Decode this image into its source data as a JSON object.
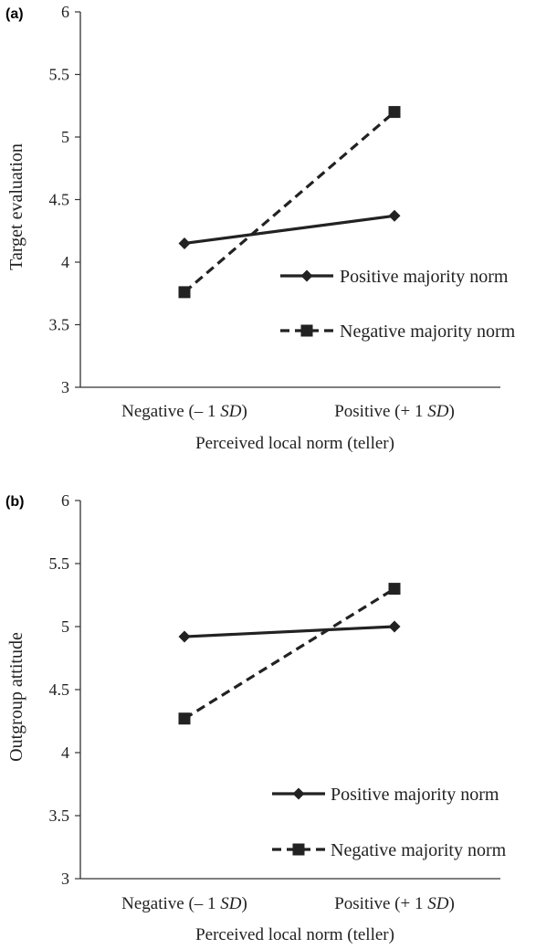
{
  "chart_data": [
    {
      "type": "line",
      "panel_label": "(a)",
      "categories": [
        "Negative (– 1 SD)",
        "Positive (+ 1 SD)"
      ],
      "category_parts": [
        {
          "pre": "Negative (– 1 ",
          "sd": "SD",
          "post": ")"
        },
        {
          "pre": "Positive (+ 1 ",
          "sd": "SD",
          "post": ")"
        }
      ],
      "series": [
        {
          "name": "Positive majority norm",
          "marker": "diamond",
          "dash": "solid",
          "values": [
            4.15,
            4.37
          ]
        },
        {
          "name": "Negative majority norm",
          "marker": "square",
          "dash": "dashed",
          "values": [
            3.76,
            5.2
          ]
        }
      ],
      "xlabel": "Perceived local norm (teller)",
      "ylabel": "Target evaluation",
      "ylim": [
        3,
        6
      ],
      "yticks": [
        "3",
        "3.5",
        "4",
        "4.5",
        "5",
        "5.5",
        "6"
      ],
      "legend_position": "right",
      "grid": false
    },
    {
      "type": "line",
      "panel_label": "(b)",
      "categories": [
        "Negative (– 1 SD)",
        "Positive (+ 1 SD)"
      ],
      "category_parts": [
        {
          "pre": "Negative (– 1 ",
          "sd": "SD",
          "post": ")"
        },
        {
          "pre": "Positive (+ 1 ",
          "sd": "SD",
          "post": ")"
        }
      ],
      "series": [
        {
          "name": "Positive majority norm",
          "marker": "diamond",
          "dash": "solid",
          "values": [
            4.92,
            5.0
          ]
        },
        {
          "name": "Negative majority norm",
          "marker": "square",
          "dash": "dashed",
          "values": [
            4.27,
            5.3
          ]
        }
      ],
      "xlabel": "Perceived local norm (teller)",
      "ylabel": "Outgroup attitude",
      "ylim": [
        3,
        6
      ],
      "yticks": [
        "3",
        "3.5",
        "4",
        "4.5",
        "5",
        "5.5",
        "6"
      ],
      "legend_position": "right",
      "grid": false
    }
  ]
}
